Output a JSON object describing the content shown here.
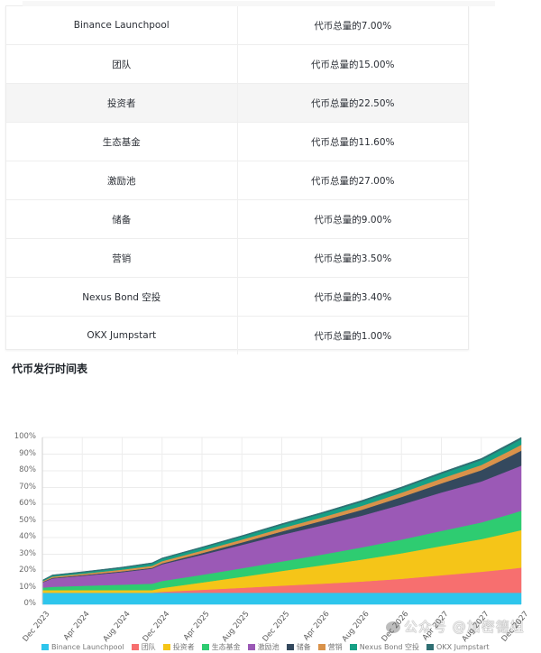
{
  "allocation_table": {
    "rows": [
      {
        "name": "Binance Launchpool",
        "share": "代币总量的7.00%",
        "highlight": false
      },
      {
        "name": "团队",
        "share": "代币总量的15.00%",
        "highlight": false
      },
      {
        "name": "投资者",
        "share": "代币总量的22.50%",
        "highlight": true
      },
      {
        "name": "生态基金",
        "share": "代币总量的11.60%",
        "highlight": false
      },
      {
        "name": "激励池",
        "share": "代币总量的27.00%",
        "highlight": false
      },
      {
        "name": "储备",
        "share": "代币总量的9.00%",
        "highlight": false
      },
      {
        "name": "营销",
        "share": "代币总量的3.50%",
        "highlight": false
      },
      {
        "name": "Nexus Bond 空投",
        "share": "代币总量的3.40%",
        "highlight": false
      },
      {
        "name": "OKX Jumpstart",
        "share": "代币总量的1.00%",
        "highlight": false
      }
    ]
  },
  "section": {
    "title": "代币发行时间表"
  },
  "watermark": {
    "text": "公众号 @加密德姐"
  },
  "chart_data": {
    "type": "area",
    "stacked": true,
    "title": "代币发行时间表",
    "xlabel": "",
    "ylabel": "",
    "ylim": [
      0,
      100
    ],
    "y_ticks": [
      "0%",
      "10%",
      "20%",
      "30%",
      "40%",
      "50%",
      "60%",
      "70%",
      "80%",
      "90%",
      "100%"
    ],
    "x_tick_labels": [
      "Dec 2023",
      "Apr 2024",
      "Aug 2024",
      "Dec 2024",
      "Apr 2025",
      "Aug 2025",
      "Dec 2025",
      "Apr 2026",
      "Aug 2026",
      "Dec 2026",
      "Apr 2027",
      "Aug 2027",
      "Dec 2027"
    ],
    "grid": true,
    "legend_position": "bottom",
    "x": [
      "Dec 2023",
      "Jan 2024",
      "Apr 2024",
      "Aug 2024",
      "Nov 2024",
      "Dec 2024",
      "Apr 2025",
      "Aug 2025",
      "Dec 2025",
      "Apr 2026",
      "Aug 2026",
      "Dec 2026",
      "Apr 2027",
      "Aug 2027",
      "Nov 2027",
      "Dec 2027"
    ],
    "series": [
      {
        "name": "Binance Launchpool",
        "color": "#2ec5ec",
        "values": [
          7.0,
          7.0,
          7.0,
          7.0,
          7.0,
          7.0,
          7.0,
          7.0,
          7.0,
          7.0,
          7.0,
          7.0,
          7.0,
          7.0,
          7.0,
          7.0
        ]
      },
      {
        "name": "团队",
        "color": "#f76f6f",
        "values": [
          0.0,
          0.0,
          0.0,
          0.0,
          0.0,
          0.5,
          1.7,
          2.9,
          4.2,
          5.4,
          6.7,
          8.3,
          10.4,
          12.5,
          14.3,
          15.0
        ]
      },
      {
        "name": "投资者",
        "color": "#f5c518",
        "values": [
          1.5,
          1.5,
          1.5,
          1.5,
          1.5,
          2.3,
          4.4,
          6.6,
          8.8,
          11.0,
          13.1,
          15.3,
          17.5,
          19.6,
          21.8,
          22.5
        ]
      },
      {
        "name": "生态基金",
        "color": "#2ecc71",
        "values": [
          1.5,
          2.0,
          2.6,
          3.3,
          3.9,
          4.2,
          4.6,
          5.1,
          5.7,
          6.4,
          7.3,
          8.2,
          9.1,
          10.0,
          11.1,
          11.6
        ]
      },
      {
        "name": "激励池",
        "color": "#9b59b6",
        "values": [
          3.0,
          5.0,
          6.0,
          7.5,
          9.0,
          10.0,
          12.0,
          14.0,
          16.0,
          17.5,
          19.0,
          21.0,
          23.0,
          24.5,
          26.5,
          27.0
        ]
      },
      {
        "name": "储备",
        "color": "#34495e",
        "values": [
          0.3,
          0.4,
          0.4,
          0.5,
          0.5,
          0.6,
          1.0,
          1.5,
          2.0,
          2.7,
          3.5,
          4.5,
          5.5,
          6.8,
          8.4,
          9.0
        ]
      },
      {
        "name": "营销",
        "color": "#d9924a",
        "values": [
          0.5,
          0.7,
          0.8,
          1.0,
          1.2,
          1.3,
          1.5,
          1.7,
          1.9,
          2.1,
          2.4,
          2.6,
          2.9,
          3.1,
          3.4,
          3.5
        ]
      },
      {
        "name": "Nexus Bond 空投",
        "color": "#16a085",
        "values": [
          0.4,
          0.6,
          0.8,
          1.0,
          1.3,
          1.4,
          1.6,
          1.8,
          2.0,
          2.2,
          2.4,
          2.6,
          2.8,
          3.0,
          3.3,
          3.4
        ]
      },
      {
        "name": "OKX Jumpstart",
        "color": "#2f6f73",
        "values": [
          0.3,
          0.4,
          0.4,
          0.5,
          0.5,
          0.5,
          0.6,
          0.6,
          0.7,
          0.7,
          0.8,
          0.8,
          0.9,
          0.9,
          1.0,
          1.0
        ]
      }
    ]
  }
}
